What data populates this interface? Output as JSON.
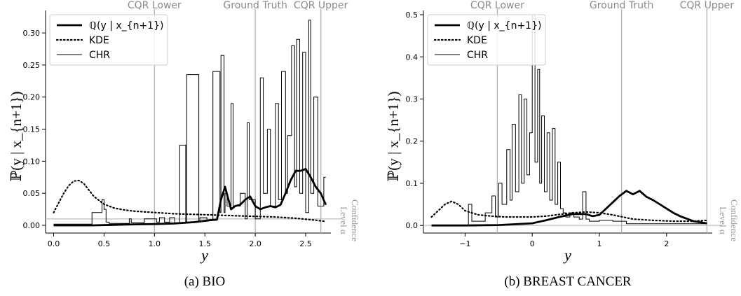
{
  "panels": [
    {
      "caption": "(a) BIO",
      "ylabel": "ℙ(y | x_{n+1})",
      "xlabel": "y",
      "xlim": [
        -0.08,
        2.75
      ],
      "ylim": [
        -0.012,
        0.335
      ],
      "xticks": [
        0.0,
        0.5,
        1.0,
        1.5,
        2.0,
        2.5
      ],
      "xtick_labels": [
        "0.0",
        "0.5",
        "1.0",
        "1.5",
        "2.0",
        "2.5"
      ],
      "yticks": [
        0.0,
        0.05,
        0.1,
        0.15,
        0.2,
        0.25,
        0.3
      ],
      "ytick_labels": [
        "0.00",
        "0.05",
        "0.10",
        "0.15",
        "0.20",
        "0.25",
        "0.30"
      ],
      "vlines": [
        {
          "label": "CQR Lower",
          "x": 1.0
        },
        {
          "label": "Ground Truth",
          "x": 2.0
        },
        {
          "label": "CQR Upper",
          "x": 2.65
        }
      ],
      "confidence_level": {
        "label_line1": "Confidence",
        "label_line2": "Level α",
        "y": 0.01
      },
      "legend": [
        {
          "label": "ℚ(y | x_{n+1})",
          "style": "thick"
        },
        {
          "label": "KDE",
          "style": "dotted"
        },
        {
          "label": "CHR",
          "style": "thin"
        }
      ],
      "q_curve": {
        "x": [
          0,
          0.2,
          0.4,
          0.6,
          0.8,
          1.0,
          1.2,
          1.4,
          1.55,
          1.62,
          1.66,
          1.7,
          1.76,
          1.8,
          1.85,
          1.9,
          1.95,
          2.0,
          2.05,
          2.1,
          2.15,
          2.2,
          2.25,
          2.3,
          2.35,
          2.4,
          2.45,
          2.5,
          2.55,
          2.6,
          2.65,
          2.7
        ],
        "y": [
          0.0,
          0.0,
          0.0,
          0.0008,
          0.0015,
          0.002,
          0.003,
          0.005,
          0.008,
          0.009,
          0.04,
          0.06,
          0.025,
          0.03,
          0.032,
          0.04,
          0.045,
          0.03,
          0.025,
          0.028,
          0.03,
          0.028,
          0.032,
          0.05,
          0.07,
          0.085,
          0.085,
          0.088,
          0.075,
          0.06,
          0.05,
          0.032
        ]
      },
      "kde_curve": {
        "x": [
          0,
          0.05,
          0.1,
          0.15,
          0.2,
          0.25,
          0.3,
          0.35,
          0.4,
          0.5,
          0.6,
          0.7,
          0.8,
          1.0,
          1.2,
          1.4,
          1.6,
          1.8,
          2.0,
          2.2,
          2.4,
          2.6,
          2.7
        ],
        "y": [
          0.02,
          0.035,
          0.05,
          0.062,
          0.069,
          0.07,
          0.065,
          0.055,
          0.045,
          0.033,
          0.027,
          0.024,
          0.022,
          0.02,
          0.018,
          0.017,
          0.016,
          0.015,
          0.014,
          0.013,
          0.011,
          0.008,
          0.006
        ]
      },
      "chr_curve": {
        "x": [
          0,
          0.38,
          0.38,
          0.48,
          0.48,
          0.5,
          0.5,
          0.52,
          0.52,
          0.55,
          0.55,
          0.75,
          0.75,
          0.77,
          0.77,
          0.9,
          0.9,
          1.02,
          1.02,
          1.05,
          1.05,
          1.1,
          1.1,
          1.15,
          1.15,
          1.2,
          1.2,
          1.25,
          1.25,
          1.31,
          1.31,
          1.32,
          1.32,
          1.44,
          1.44,
          1.45,
          1.45,
          1.52,
          1.52,
          1.58,
          1.58,
          1.65,
          1.65,
          1.66,
          1.66,
          1.69,
          1.69,
          1.7,
          1.7,
          1.72,
          1.72,
          1.76,
          1.76,
          1.78,
          1.78,
          1.85,
          1.85,
          1.9,
          1.9,
          1.92,
          1.92,
          1.94,
          1.94,
          2.0,
          2.0,
          2.05,
          2.05,
          2.08,
          2.08,
          2.12,
          2.12,
          2.15,
          2.15,
          2.2,
          2.2,
          2.23,
          2.23,
          2.26,
          2.26,
          2.3,
          2.3,
          2.32,
          2.32,
          2.36,
          2.36,
          2.39,
          2.39,
          2.41,
          2.41,
          2.44,
          2.44,
          2.47,
          2.47,
          2.5,
          2.5,
          2.53,
          2.53,
          2.55,
          2.55,
          2.58,
          2.58,
          2.62,
          2.62,
          2.68,
          2.68,
          2.7
        ],
        "y": [
          0.002,
          0.002,
          0.02,
          0.02,
          0.04,
          0.04,
          0.025,
          0.025,
          0.005,
          0.005,
          0.003,
          0.003,
          0.01,
          0.01,
          0.004,
          0.004,
          0.01,
          0.01,
          0.005,
          0.005,
          0.012,
          0.012,
          0.005,
          0.005,
          0.012,
          0.012,
          0.003,
          0.003,
          0.125,
          0.125,
          0.006,
          0.006,
          0.235,
          0.235,
          0.005,
          0.005,
          0.012,
          0.012,
          0.008,
          0.008,
          0.24,
          0.24,
          0.02,
          0.02,
          0.265,
          0.265,
          0.02,
          0.02,
          0.05,
          0.05,
          0.03,
          0.03,
          0.19,
          0.19,
          0.03,
          0.03,
          0.05,
          0.05,
          0.01,
          0.01,
          0.16,
          0.16,
          0.04,
          0.04,
          0.01,
          0.01,
          0.23,
          0.23,
          0.05,
          0.05,
          0.15,
          0.15,
          0.03,
          0.03,
          0.19,
          0.19,
          0.04,
          0.04,
          0.24,
          0.24,
          0.05,
          0.05,
          0.14,
          0.14,
          0.28,
          0.28,
          0.06,
          0.06,
          0.29,
          0.29,
          0.05,
          0.05,
          0.27,
          0.27,
          0.02,
          0.02,
          0.32,
          0.32,
          0.05,
          0.05,
          0.2,
          0.2,
          0.03,
          0.03,
          0.075,
          0.075
        ]
      }
    },
    {
      "caption": "(b) BREAST CANCER",
      "ylabel": "ℙ(y | x_{n+1})",
      "xlabel": "y",
      "xlim": [
        -1.62,
        2.68
      ],
      "ylim": [
        -0.018,
        0.51
      ],
      "xticks": [
        -1,
        0,
        1,
        2
      ],
      "xtick_labels": [
        "−1",
        "0",
        "1",
        "2"
      ],
      "yticks": [
        0.0,
        0.1,
        0.2,
        0.3,
        0.4,
        0.5
      ],
      "ytick_labels": [
        "0.0",
        "0.1",
        "0.2",
        "0.3",
        "0.4",
        "0.5"
      ],
      "vlines": [
        {
          "label": "CQR Lower",
          "x": -0.52
        },
        {
          "label": "Ground Truth",
          "x": 1.33
        },
        {
          "label": "CQR Upper",
          "x": 2.6
        }
      ],
      "confidence_level": {
        "label_line1": "Confidence",
        "label_line2": "Level α",
        "y": 0.0
      },
      "legend": [
        {
          "label": "ℚ(y | x_{n+1})",
          "style": "thick"
        },
        {
          "label": "KDE",
          "style": "dotted"
        },
        {
          "label": "CHR",
          "style": "thin"
        }
      ],
      "q_curve": {
        "x": [
          -1.5,
          -1.0,
          -0.5,
          0.0,
          0.2,
          0.4,
          0.6,
          0.8,
          0.9,
          1.0,
          1.1,
          1.2,
          1.3,
          1.4,
          1.5,
          1.6,
          1.7,
          1.8,
          1.9,
          2.0,
          2.1,
          2.2,
          2.4,
          2.6
        ],
        "y": [
          0.0,
          0.0,
          0.001,
          0.005,
          0.012,
          0.02,
          0.027,
          0.027,
          0.022,
          0.025,
          0.04,
          0.055,
          0.07,
          0.082,
          0.074,
          0.082,
          0.068,
          0.06,
          0.05,
          0.04,
          0.03,
          0.022,
          0.01,
          0.005
        ]
      },
      "kde_curve": {
        "x": [
          -1.5,
          -1.4,
          -1.3,
          -1.2,
          -1.1,
          -1.0,
          -0.8,
          -0.6,
          -0.4,
          -0.2,
          0.0,
          0.2,
          0.4,
          0.6,
          0.8,
          1.0,
          1.2,
          1.5,
          1.8,
          2.1,
          2.4,
          2.6
        ],
        "y": [
          0.02,
          0.035,
          0.05,
          0.057,
          0.05,
          0.035,
          0.025,
          0.022,
          0.02,
          0.02,
          0.02,
          0.022,
          0.026,
          0.03,
          0.032,
          0.03,
          0.025,
          0.015,
          0.012,
          0.01,
          0.01,
          0.012
        ]
      },
      "chr_curve": {
        "x": [
          -1.0,
          -0.95,
          -0.95,
          -0.9,
          -0.9,
          -0.7,
          -0.7,
          -0.6,
          -0.6,
          -0.55,
          -0.55,
          -0.5,
          -0.5,
          -0.45,
          -0.45,
          -0.38,
          -0.38,
          -0.33,
          -0.33,
          -0.3,
          -0.3,
          -0.25,
          -0.25,
          -0.2,
          -0.2,
          -0.16,
          -0.16,
          -0.12,
          -0.12,
          -0.08,
          -0.08,
          -0.04,
          -0.04,
          0.0,
          0.0,
          0.04,
          0.04,
          0.08,
          0.08,
          0.11,
          0.11,
          0.14,
          0.14,
          0.18,
          0.18,
          0.22,
          0.22,
          0.26,
          0.26,
          0.3,
          0.3,
          0.34,
          0.34,
          0.38,
          0.38,
          0.42,
          0.42,
          0.46,
          0.46,
          0.5,
          0.5,
          0.56,
          0.56,
          0.62,
          0.62,
          0.7,
          0.7,
          0.75,
          0.75,
          0.8,
          0.8,
          0.85,
          0.85,
          1.0,
          1.0,
          1.2,
          1.2,
          1.4,
          1.4,
          2.6
        ],
        "y": [
          0.0,
          0.0,
          0.05,
          0.05,
          0.01,
          0.01,
          0.03,
          0.03,
          0.07,
          0.07,
          0.02,
          0.02,
          0.1,
          0.1,
          0.05,
          0.05,
          0.18,
          0.18,
          0.06,
          0.06,
          0.24,
          0.24,
          0.08,
          0.08,
          0.31,
          0.31,
          0.1,
          0.1,
          0.3,
          0.3,
          0.12,
          0.12,
          0.22,
          0.22,
          0.5,
          0.5,
          0.15,
          0.15,
          0.37,
          0.37,
          0.1,
          0.1,
          0.26,
          0.26,
          0.08,
          0.08,
          0.22,
          0.22,
          0.06,
          0.06,
          0.23,
          0.23,
          0.05,
          0.05,
          0.15,
          0.15,
          0.04,
          0.04,
          0.03,
          0.03,
          0.02,
          0.02,
          0.03,
          0.03,
          0.02,
          0.02,
          0.015,
          0.015,
          0.08,
          0.08,
          0.015,
          0.015,
          0.01,
          0.01,
          0.012,
          0.012,
          0.01,
          0.01,
          0.004,
          0.004
        ]
      }
    }
  ]
}
